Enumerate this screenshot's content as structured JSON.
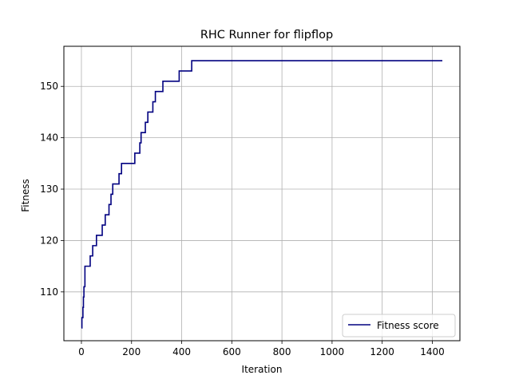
{
  "chart_data": {
    "type": "line",
    "title": "RHC Runner for flipflop",
    "xlabel": "Iteration",
    "ylabel": "Fitness",
    "xlim": [
      -70,
      1510
    ],
    "ylim": [
      100.5,
      157.8
    ],
    "xticks": [
      0,
      200,
      400,
      600,
      800,
      1000,
      1200,
      1400
    ],
    "yticks": [
      110,
      120,
      130,
      140,
      150
    ],
    "grid": true,
    "legend_position": "lower-right",
    "series": [
      {
        "name": "Fitness score",
        "color": "#000080",
        "step": true,
        "x": [
          0,
          2,
          6,
          8,
          10,
          14,
          35,
          45,
          60,
          83,
          95,
          110,
          118,
          125,
          150,
          160,
          213,
          233,
          238,
          255,
          265,
          285,
          295,
          300,
          325,
          390,
          440,
          1440
        ],
        "y": [
          103,
          105,
          107,
          109,
          111,
          115,
          117,
          119,
          121,
          123,
          125,
          127,
          129,
          131,
          133,
          135,
          137,
          139,
          141,
          143,
          145,
          147,
          149,
          149,
          151,
          153,
          155,
          155
        ]
      }
    ]
  }
}
